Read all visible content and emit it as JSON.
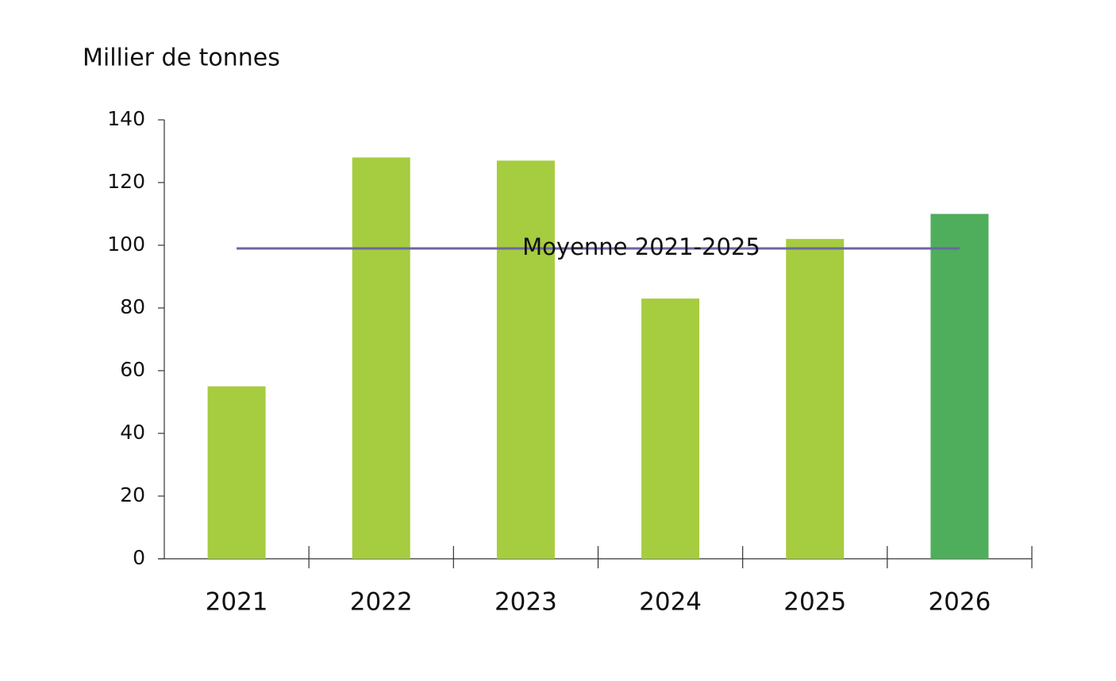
{
  "chart_data": {
    "type": "bar",
    "y_label": "Millier de tonnes",
    "categories": [
      "2021",
      "2022",
      "2023",
      "2024",
      "2025",
      "2026"
    ],
    "values": [
      55,
      128,
      127,
      83,
      102,
      110
    ],
    "colors": [
      "#a6cc3f",
      "#a6cc3f",
      "#a6cc3f",
      "#a6cc3f",
      "#a6cc3f",
      "#4fae5c"
    ],
    "ylim": [
      0,
      140
    ],
    "yticks": [
      0,
      20,
      40,
      60,
      80,
      100,
      120,
      140
    ],
    "average": {
      "label": "Moyenne 2021-2025",
      "value": 99,
      "color": "#6b67a3"
    }
  }
}
